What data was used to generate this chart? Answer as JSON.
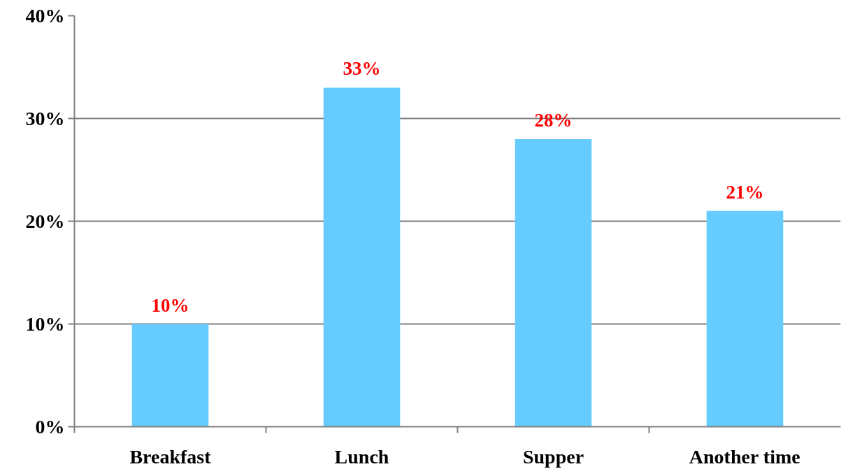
{
  "chart_data": {
    "type": "bar",
    "categories": [
      "Breakfast",
      "Lunch",
      "Supper",
      "Another time"
    ],
    "values": [
      10,
      33,
      28,
      21
    ],
    "color": "#66ccff",
    "value_labels": [
      "10%",
      "33%",
      "28%",
      "21%"
    ],
    "ylim": [
      0,
      40
    ],
    "yticks": [
      {
        "value": 0,
        "label": "0%"
      },
      {
        "value": 10,
        "label": "10%"
      },
      {
        "value": 20,
        "label": "20%"
      },
      {
        "value": 30,
        "label": "30%"
      },
      {
        "value": 40,
        "label": "40%"
      }
    ],
    "grid": "y"
  }
}
